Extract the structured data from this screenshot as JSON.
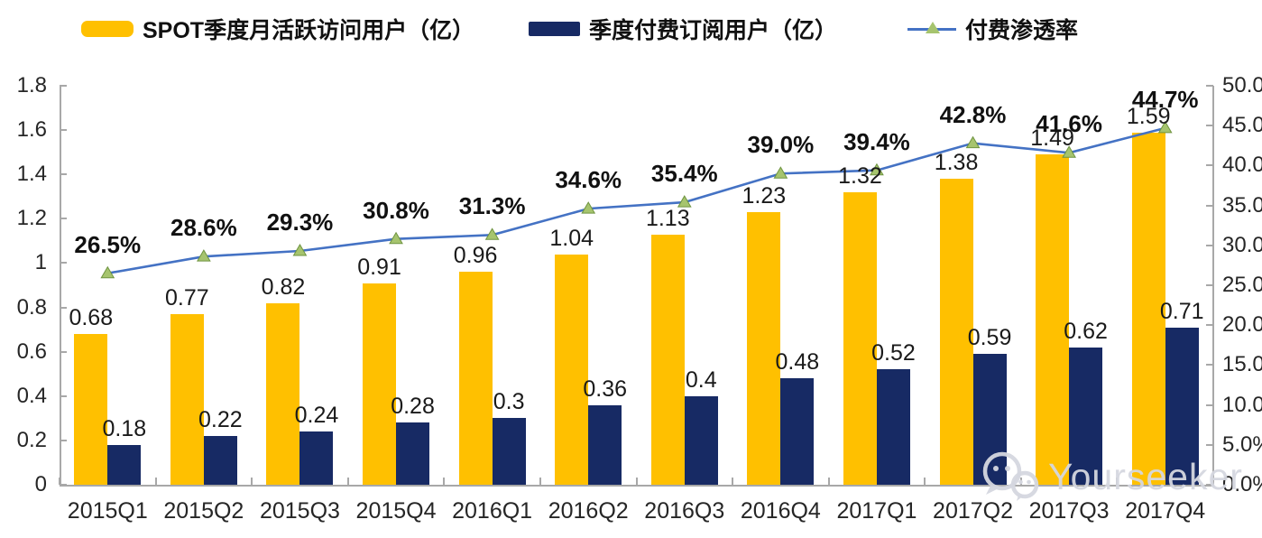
{
  "chart_data": {
    "type": "bar+line",
    "categories": [
      "2015Q1",
      "2015Q2",
      "2015Q3",
      "2015Q4",
      "2016Q1",
      "2016Q2",
      "2016Q3",
      "2016Q4",
      "2017Q1",
      "2017Q2",
      "2017Q3",
      "2017Q4"
    ],
    "series": [
      {
        "name": "SPOT季度月活跃访问用户（亿）",
        "type": "bar",
        "axis": "left",
        "color": "#FFC000",
        "values": [
          0.68,
          0.77,
          0.82,
          0.91,
          0.96,
          1.04,
          1.13,
          1.23,
          1.32,
          1.38,
          1.49,
          1.59
        ]
      },
      {
        "name": "季度付费订阅用户（亿）",
        "type": "bar",
        "axis": "left",
        "color": "#172A64",
        "values": [
          0.18,
          0.22,
          0.24,
          0.28,
          0.3,
          0.36,
          0.4,
          0.48,
          0.52,
          0.59,
          0.62,
          0.71
        ]
      },
      {
        "name": "付费渗透率",
        "type": "line",
        "axis": "right",
        "color": "#4472C4",
        "marker": "triangle",
        "marker_color": "#A6C46E",
        "marker_edge_color": "#6f9440",
        "values_percent": [
          26.5,
          28.6,
          29.3,
          30.8,
          31.3,
          34.6,
          35.4,
          39.0,
          39.4,
          42.8,
          41.6,
          44.7
        ]
      }
    ],
    "left_axis": {
      "min": 0,
      "max": 1.8,
      "step": 0.2,
      "tick_labels": [
        "1.8",
        "1.6",
        "1.4",
        "1.2",
        "1",
        "0.8",
        "0.6",
        "0.4",
        "0.2",
        "0"
      ]
    },
    "right_axis": {
      "min": 0,
      "max": 50,
      "step": 5,
      "tick_labels": [
        "50.0%",
        "45.0%",
        "40.0%",
        "35.0%",
        "30.0%",
        "25.0%",
        "20.0%",
        "15.0%",
        "10.0%",
        "5.0%",
        "0.0%"
      ]
    },
    "grid": false,
    "legend_position": "top",
    "title": ""
  },
  "watermark": {
    "text": "Yourseeker",
    "icon": "wechat-icon"
  }
}
